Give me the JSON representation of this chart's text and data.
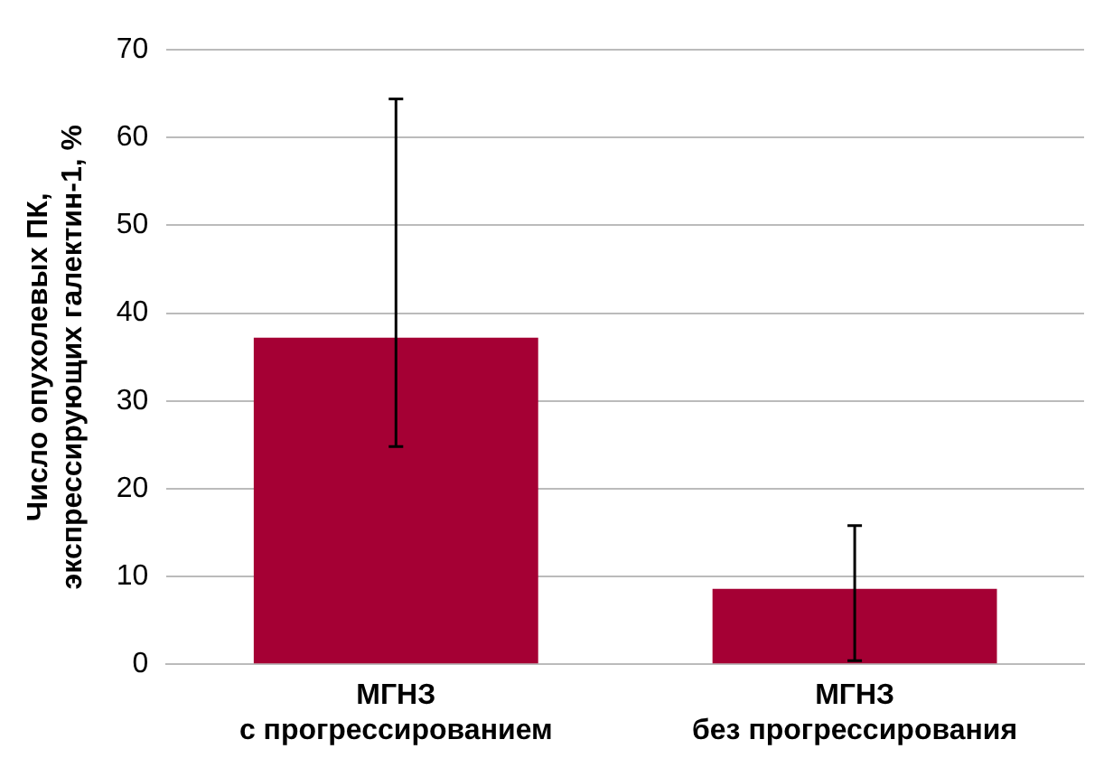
{
  "chart_data": {
    "type": "bar",
    "ylabel": "Число опухолевых ПК,\nэкспрессирующих галектин-1, %",
    "categories": [
      "МГНЗ\nс прогрессированием",
      "МГНЗ\nбез прогрессирования"
    ],
    "values": [
      37.2,
      8.6
    ],
    "color": "#a50034",
    "errors": [
      [
        24.8,
        64.4
      ],
      [
        0.4,
        15.8
      ]
    ],
    "ylim": [
      0,
      70
    ],
    "yticks": [
      0,
      10,
      20,
      30,
      40,
      50,
      60,
      70
    ],
    "grid": "y"
  }
}
